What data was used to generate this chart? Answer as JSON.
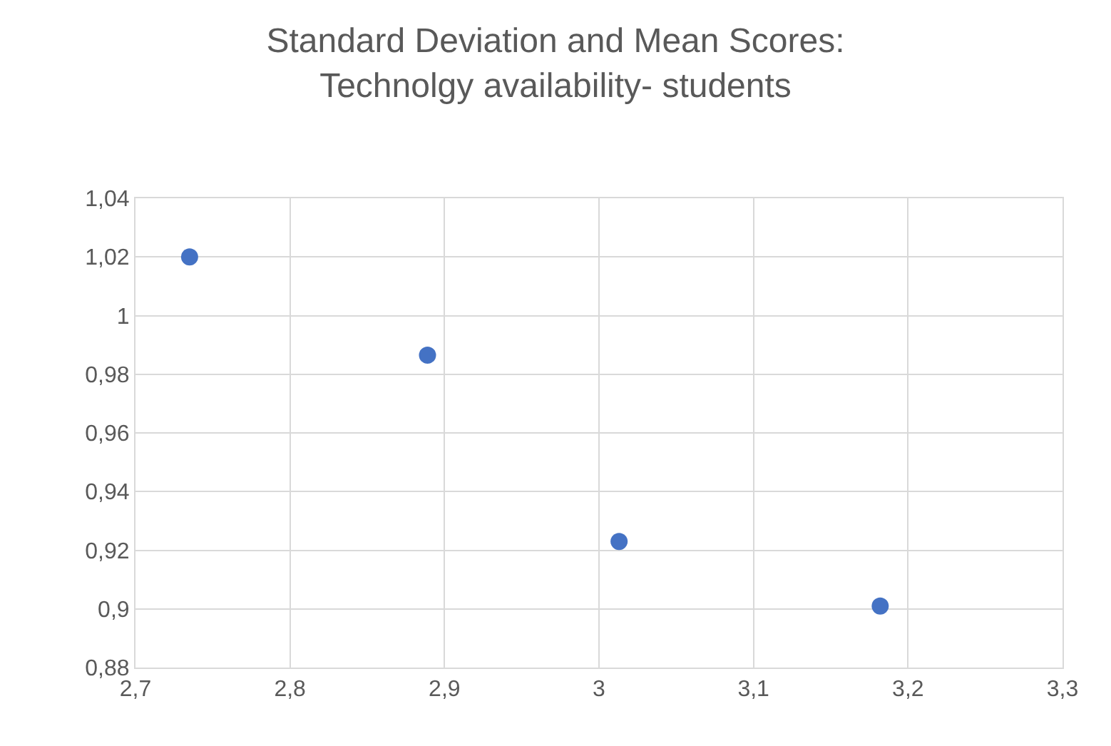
{
  "chart_data": {
    "type": "scatter",
    "title": "Standard Deviation and Mean Scores:\nTechnolgy availability- students",
    "x": [
      2.735,
      2.889,
      3.013,
      3.182
    ],
    "series": [
      {
        "color": "#4472c4",
        "values": [
          1.02,
          0.9865,
          0.923,
          0.901
        ]
      }
    ],
    "xlim": [
      2.7,
      3.3
    ],
    "xticks": [
      {
        "value": 2.7,
        "label": "2,7"
      },
      {
        "value": 2.8,
        "label": "2,8"
      },
      {
        "value": 2.9,
        "label": "2,9"
      },
      {
        "value": 3,
        "label": "3"
      },
      {
        "value": 3.1,
        "label": "3,1"
      },
      {
        "value": 3.2,
        "label": "3,2"
      },
      {
        "value": 3.3,
        "label": "3,3"
      }
    ],
    "ylim": [
      0.88,
      1.04
    ],
    "yticks": [
      {
        "value": 0.88,
        "label": "0,88"
      },
      {
        "value": 0.9,
        "label": "0,9"
      },
      {
        "value": 0.92,
        "label": "0,92"
      },
      {
        "value": 0.94,
        "label": "0,94"
      },
      {
        "value": 0.96,
        "label": "0,96"
      },
      {
        "value": 0.98,
        "label": "0,98"
      },
      {
        "value": 1,
        "label": "1"
      },
      {
        "value": 1.02,
        "label": "1,02"
      },
      {
        "value": 1.04,
        "label": "1,04"
      }
    ],
    "grid": true,
    "marker": "circle"
  }
}
